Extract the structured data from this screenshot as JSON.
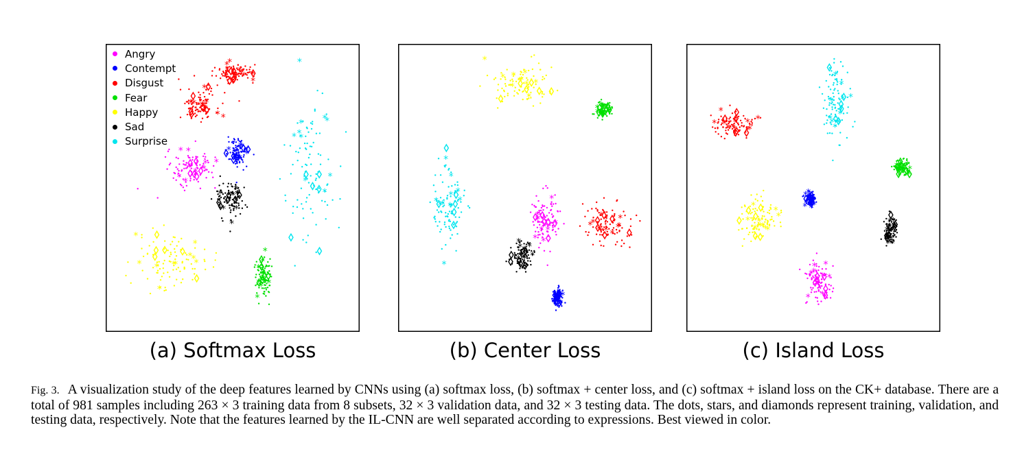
{
  "figure": {
    "caption_label": "Fig. 3.",
    "caption_text": "A visualization study of the deep features learned by CNNs using (a) softmax loss, (b) softmax + center loss, and (c) softmax + island loss on the CK+ database. There are a total of 981 samples including 263 × 3 training data from 8 subsets, 32 × 3 validation data, and 32 × 3 testing data. The dots, stars, and diamonds represent training, validation, and testing data, respectively. Note that the features learned by the IL-CNN are well separated according to expressions. Best viewed in color."
  },
  "colors": {
    "Angry": "#ff00ff",
    "Contempt": "#0000ff",
    "Disgust": "#ff0000",
    "Fear": "#00e000",
    "Happy": "#ffff00",
    "Sad": "#000000",
    "Surprise": "#00e5ee"
  },
  "legend": [
    "Angry",
    "Contempt",
    "Disgust",
    "Fear",
    "Happy",
    "Sad",
    "Surprise"
  ],
  "chart_data": [
    {
      "type": "scatter",
      "title": "(a) Softmax Loss",
      "xlim": [
        0,
        100
      ],
      "ylim": [
        0,
        100
      ],
      "legend_position": "top-left",
      "clusters": [
        {
          "class": "Disgust",
          "cx": 37,
          "cy": 79,
          "sx": 4,
          "sy": 3
        },
        {
          "class": "Disgust",
          "cx": 51,
          "cy": 90,
          "sx": 4,
          "sy": 1.5
        },
        {
          "class": "Angry",
          "cx": 34,
          "cy": 57,
          "sx": 5,
          "sy": 3
        },
        {
          "class": "Contempt",
          "cx": 52,
          "cy": 62,
          "sx": 2,
          "sy": 2.5
        },
        {
          "class": "Sad",
          "cx": 49,
          "cy": 46,
          "sx": 3,
          "sy": 3.5
        },
        {
          "class": "Surprise",
          "cx": 81,
          "cy": 57,
          "sx": 5,
          "sy": 13
        },
        {
          "class": "Happy",
          "cx": 25,
          "cy": 25,
          "sx": 7,
          "sy": 5
        },
        {
          "class": "Fear",
          "cx": 62,
          "cy": 19,
          "sx": 1.5,
          "sy": 3.5
        }
      ]
    },
    {
      "type": "scatter",
      "title": "(b) Center Loss",
      "xlim": [
        0,
        100
      ],
      "ylim": [
        0,
        100
      ],
      "clusters": [
        {
          "class": "Happy",
          "cx": 48,
          "cy": 86,
          "sx": 7,
          "sy": 3.5
        },
        {
          "class": "Fear",
          "cx": 81,
          "cy": 77,
          "sx": 1.5,
          "sy": 1.2
        },
        {
          "class": "Surprise",
          "cx": 20,
          "cy": 44,
          "sx": 3,
          "sy": 7
        },
        {
          "class": "Angry",
          "cx": 58,
          "cy": 39,
          "sx": 2.5,
          "sy": 5
        },
        {
          "class": "Disgust",
          "cx": 82,
          "cy": 38,
          "sx": 5,
          "sy": 4
        },
        {
          "class": "Sad",
          "cx": 49,
          "cy": 26,
          "sx": 2.5,
          "sy": 2.5
        },
        {
          "class": "Contempt",
          "cx": 63,
          "cy": 12,
          "sx": 1,
          "sy": 1.5
        }
      ]
    },
    {
      "type": "scatter",
      "title": "(c) Island Loss",
      "xlim": [
        0,
        100
      ],
      "ylim": [
        0,
        100
      ],
      "clusters": [
        {
          "class": "Surprise",
          "cx": 59,
          "cy": 80,
          "sx": 2.5,
          "sy": 7
        },
        {
          "class": "Disgust",
          "cx": 19,
          "cy": 72,
          "sx": 4,
          "sy": 2
        },
        {
          "class": "Fear",
          "cx": 85,
          "cy": 57,
          "sx": 1.5,
          "sy": 1.2
        },
        {
          "class": "Contempt",
          "cx": 49,
          "cy": 46,
          "sx": 1,
          "sy": 1.3
        },
        {
          "class": "Happy",
          "cx": 28,
          "cy": 39,
          "sx": 4,
          "sy": 3.5
        },
        {
          "class": "Sad",
          "cx": 80,
          "cy": 35,
          "sx": 1.2,
          "sy": 2.5
        },
        {
          "class": "Angry",
          "cx": 52,
          "cy": 17,
          "sx": 2.5,
          "sy": 4
        }
      ]
    }
  ]
}
